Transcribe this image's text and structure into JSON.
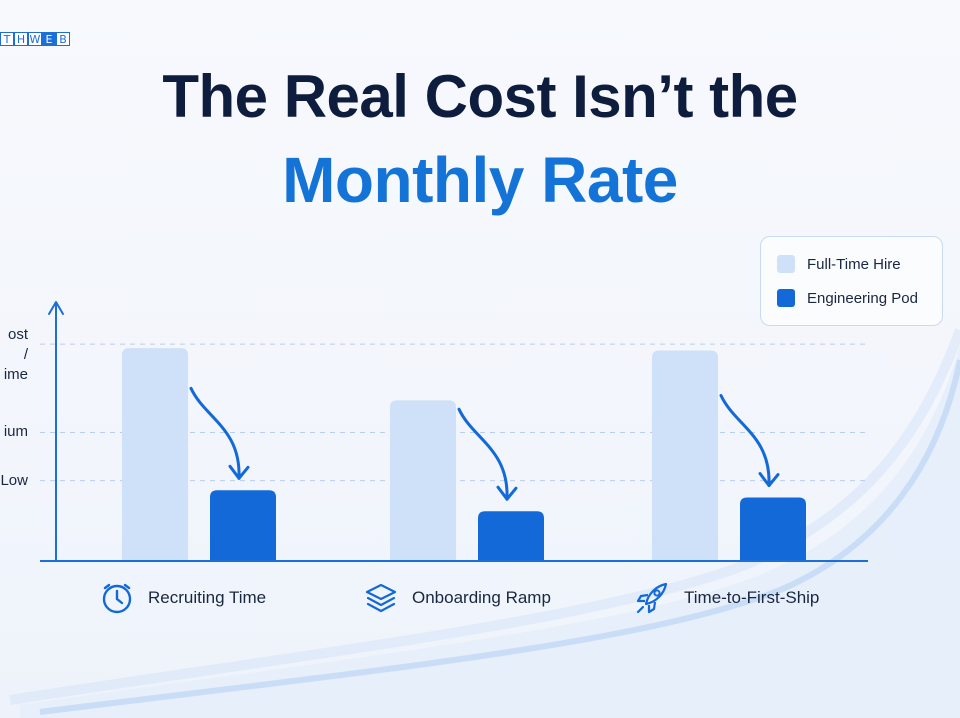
{
  "brand": {
    "letters": [
      "T",
      "H",
      "W",
      "E",
      "B"
    ]
  },
  "title": {
    "line1": "The Real Cost Isn’t the",
    "line2": "Monthly Rate"
  },
  "colors": {
    "full_time": "#cfe1f8",
    "pod": "#1369d8",
    "accent": "#1373d6",
    "axis": "#1b6fd6"
  },
  "chart_data": {
    "type": "bar",
    "categories": [
      "Recruiting Time",
      "Onboarding Ramp",
      "Time-to-First-Ship"
    ],
    "category_icons": [
      "stopwatch-icon",
      "layers-icon",
      "rocket-icon"
    ],
    "series": [
      {
        "name": "Full-Time Hire",
        "values": [
          2.65,
          2.0,
          2.62
        ]
      },
      {
        "name": "Engineering Pod",
        "values": [
          0.88,
          0.62,
          0.79
        ]
      }
    ],
    "y_tick_values": [
      1,
      1.6,
      2.7
    ],
    "y_tick_labels": [
      "Low",
      "ium",
      "ost /\nime"
    ],
    "ylim": [
      0,
      3
    ],
    "grid": true,
    "legend_position": "top-right",
    "annotations": [
      "down-arrow",
      "down-arrow",
      "down-arrow"
    ]
  }
}
